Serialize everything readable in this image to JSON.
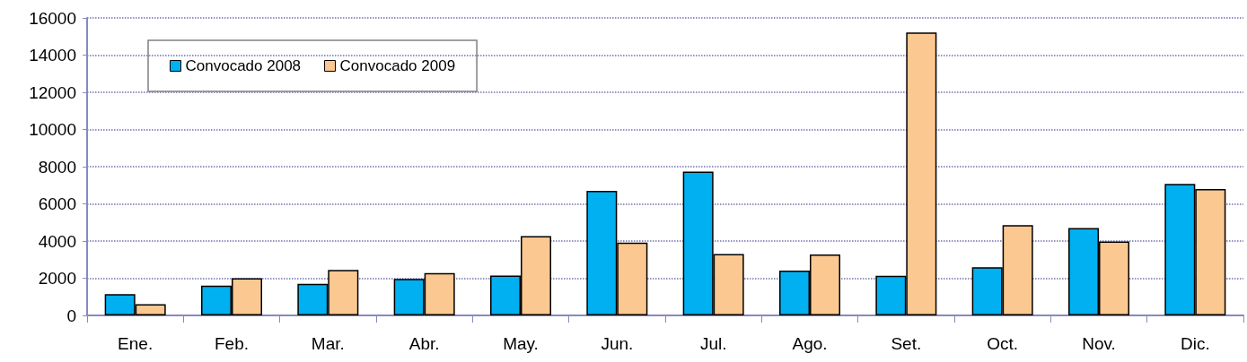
{
  "chart_data": {
    "type": "bar",
    "categories": [
      "Ene.",
      "Feb.",
      "Mar.",
      "Abr.",
      "May.",
      "Jun.",
      "Jul.",
      "Ago.",
      "Set.",
      "Oct.",
      "Nov.",
      "Dic."
    ],
    "series": [
      {
        "name": "Convocado 2008",
        "color": "#00b0f0",
        "values": [
          1150,
          1600,
          1700,
          1960,
          2150,
          6700,
          7740,
          2410,
          2130,
          2590,
          4700,
          7070
        ]
      },
      {
        "name": "Convocado 2009",
        "color": "#fac890",
        "values": [
          600,
          2000,
          2450,
          2280,
          4270,
          3920,
          3300,
          3280,
          15220,
          4850,
          3970,
          6790
        ]
      }
    ],
    "ylim": [
      0,
      16000
    ],
    "yticks": [
      0,
      2000,
      4000,
      6000,
      8000,
      10000,
      12000,
      14000,
      16000
    ],
    "grid": "y",
    "legend": "top left"
  }
}
